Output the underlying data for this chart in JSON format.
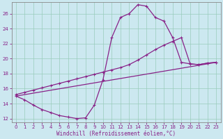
{
  "xlabel": "Windchill (Refroidissement éolien,°C)",
  "bg_color": "#cce8f0",
  "grid_color": "#99ccbb",
  "line_color": "#882288",
  "spine_color": "#888888",
  "xlim": [
    -0.5,
    23.5
  ],
  "ylim": [
    11.5,
    27.5
  ],
  "yticks": [
    12,
    14,
    16,
    18,
    20,
    22,
    24,
    26
  ],
  "xticks": [
    0,
    1,
    2,
    3,
    4,
    5,
    6,
    7,
    8,
    9,
    10,
    11,
    12,
    13,
    14,
    15,
    16,
    17,
    18,
    19,
    20,
    21,
    22,
    23
  ],
  "series": [
    {
      "x": [
        0,
        1,
        2,
        3,
        4,
        5,
        6,
        7,
        8,
        9,
        10,
        11,
        12,
        13,
        14,
        15,
        16,
        17,
        18,
        19,
        20,
        21,
        22,
        23
      ],
      "y": [
        15,
        14.5,
        13.8,
        13.2,
        12.8,
        12.4,
        12.2,
        12.0,
        12.1,
        13.8,
        17.2,
        22.8,
        25.5,
        26.0,
        27.2,
        27.0,
        25.5,
        25.0,
        22.8,
        19.5,
        19.3,
        19.2,
        19.4,
        19.5
      ]
    },
    {
      "x": [
        0,
        1,
        2,
        3,
        4,
        5,
        6,
        7,
        8,
        9,
        10,
        11,
        12,
        13,
        14,
        15,
        16,
        17,
        18,
        19,
        20,
        21,
        22,
        23
      ],
      "y": [
        15.2,
        15.5,
        15.8,
        16.1,
        16.4,
        16.7,
        17.0,
        17.3,
        17.6,
        17.9,
        18.2,
        18.5,
        18.8,
        19.2,
        19.8,
        20.5,
        21.2,
        21.8,
        22.3,
        22.8,
        19.3,
        19.2,
        19.4,
        19.5
      ]
    },
    {
      "x": [
        0,
        23
      ],
      "y": [
        15.0,
        19.5
      ]
    }
  ],
  "tick_fontsize": 5,
  "xlabel_fontsize": 5.5,
  "linewidth": 0.9,
  "markersize": 3.5,
  "marker_ew": 0.8
}
